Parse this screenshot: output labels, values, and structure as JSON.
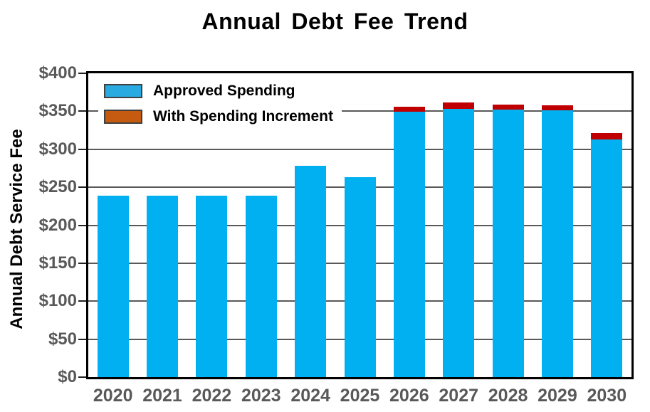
{
  "title": "Annual Debt Fee Trend",
  "chart_data": {
    "type": "bar",
    "stacked": true,
    "title": "Annual Debt Fee Trend",
    "xlabel": "",
    "ylabel": "Annual Debt Service Fee",
    "ylim": [
      0,
      400
    ],
    "ytick_step": 50,
    "ytick_labels": [
      "$0",
      "$50",
      "$100",
      "$150",
      "$200",
      "$250",
      "$300",
      "$350",
      "$400"
    ],
    "grid": true,
    "legend_position": "top-left-inside",
    "categories": [
      "2020",
      "2021",
      "2022",
      "2023",
      "2024",
      "2025",
      "2026",
      "2027",
      "2028",
      "2029",
      "2030"
    ],
    "series": [
      {
        "name": "Approved Spending",
        "color": "#00B0F0",
        "legend_color": "#29ABE2",
        "values": [
          239,
          239,
          239,
          239,
          278,
          263,
          349,
          353,
          352,
          351,
          313
        ]
      },
      {
        "name": "With Spending Increment",
        "color": "#C00000",
        "legend_color": "#C55A11",
        "values": [
          0,
          0,
          0,
          0,
          0,
          0,
          7,
          9,
          7,
          7,
          8
        ]
      }
    ],
    "totals_with_increment": [
      239,
      239,
      239,
      239,
      278,
      263,
      356,
      362,
      359,
      358,
      321
    ]
  },
  "colors": {
    "background": "#FFFFFF",
    "plot_border": "#000000",
    "gridline": "#595959",
    "tick": "#222222",
    "axis_tick_text": "#595959",
    "title_text": "#000000",
    "legend_text": "#000000",
    "legend_swatch_border": "#404040"
  }
}
